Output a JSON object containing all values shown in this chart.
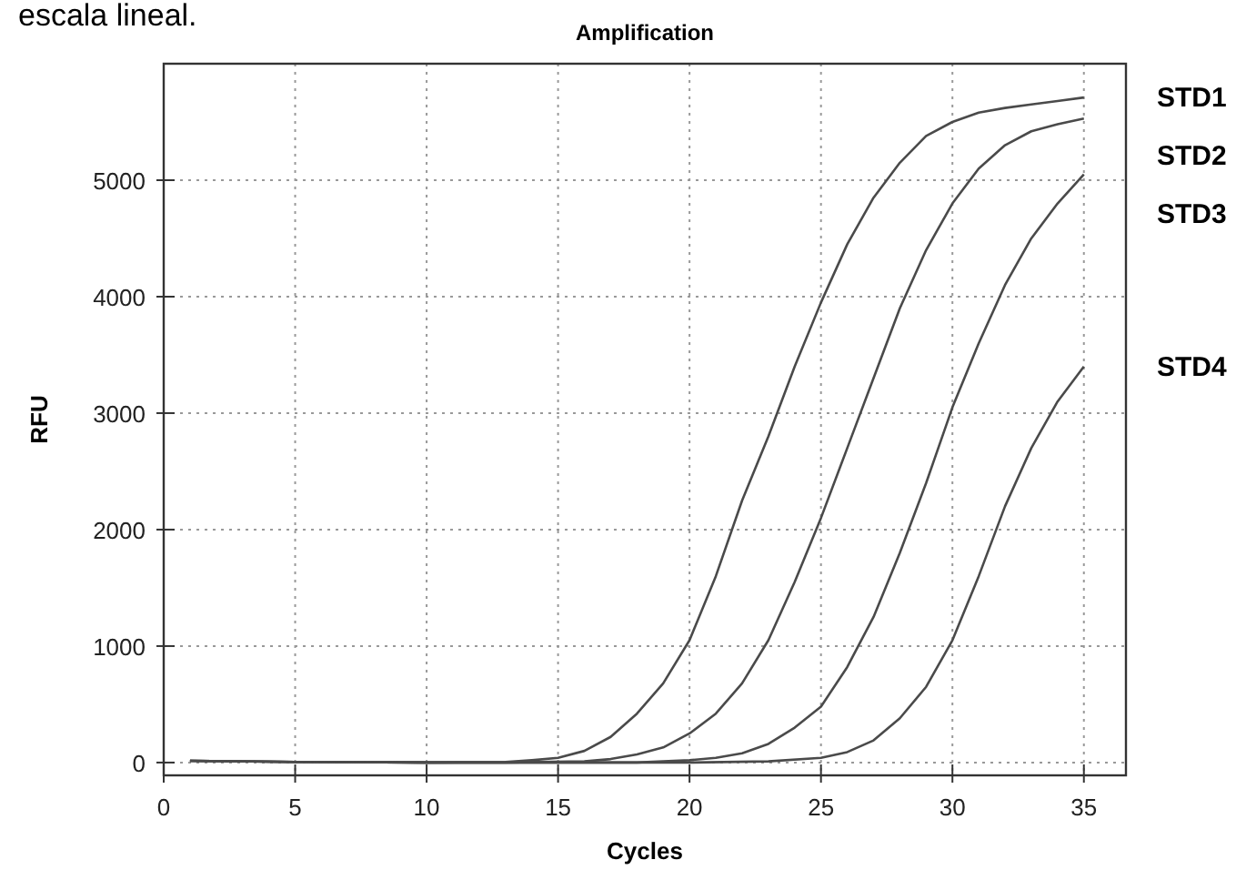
{
  "chart_data": {
    "type": "line",
    "title": "Amplification",
    "xlabel": "Cycles",
    "ylabel": "RFU",
    "annotations": [
      "escala lineal."
    ],
    "xlim": [
      0,
      36.6
    ],
    "xticks": [
      0,
      5,
      10,
      15,
      20,
      25,
      30,
      35
    ],
    "ylim": [
      -110,
      6000
    ],
    "yticks": [
      0,
      1000,
      2000,
      3000,
      4000,
      5000
    ],
    "grid": true,
    "line_style": "solid",
    "series": [
      {
        "name": "STD1",
        "color": "#4a4a4a",
        "x": [
          1,
          5,
          10,
          13,
          14,
          15,
          16,
          17,
          18,
          19,
          20,
          21,
          22,
          23,
          24,
          25,
          26,
          27,
          28,
          29,
          30,
          31,
          32,
          33,
          34,
          35
        ],
        "values": [
          15,
          5,
          0,
          5,
          20,
          40,
          100,
          220,
          420,
          680,
          1050,
          1600,
          2250,
          2800,
          3400,
          3950,
          4450,
          4850,
          5150,
          5380,
          5500,
          5580,
          5620,
          5650,
          5680,
          5710
        ]
      },
      {
        "name": "STD2",
        "color": "#4a4a4a",
        "x": [
          1,
          5,
          10,
          13,
          16,
          17,
          18,
          19,
          20,
          21,
          22,
          23,
          24,
          25,
          26,
          27,
          28,
          29,
          30,
          31,
          32,
          33,
          34,
          35
        ],
        "values": [
          15,
          5,
          0,
          0,
          10,
          30,
          70,
          130,
          250,
          420,
          680,
          1050,
          1550,
          2100,
          2700,
          3300,
          3900,
          4400,
          4800,
          5100,
          5300,
          5420,
          5480,
          5530
        ]
      },
      {
        "name": "STD3",
        "color": "#4a4a4a",
        "x": [
          1,
          5,
          10,
          18,
          20,
          21,
          22,
          23,
          24,
          25,
          26,
          27,
          28,
          29,
          30,
          31,
          32,
          33,
          34,
          35
        ],
        "values": [
          15,
          5,
          0,
          0,
          20,
          40,
          80,
          160,
          300,
          480,
          820,
          1250,
          1800,
          2400,
          3050,
          3600,
          4100,
          4500,
          4800,
          5050
        ]
      },
      {
        "name": "STD4",
        "color": "#4a4a4a",
        "x": [
          1,
          5,
          10,
          20,
          23,
          25,
          26,
          27,
          28,
          29,
          30,
          31,
          32,
          33,
          34,
          35
        ],
        "values": [
          15,
          5,
          0,
          0,
          10,
          40,
          90,
          190,
          380,
          650,
          1050,
          1600,
          2200,
          2700,
          3100,
          3400
        ]
      }
    ]
  }
}
